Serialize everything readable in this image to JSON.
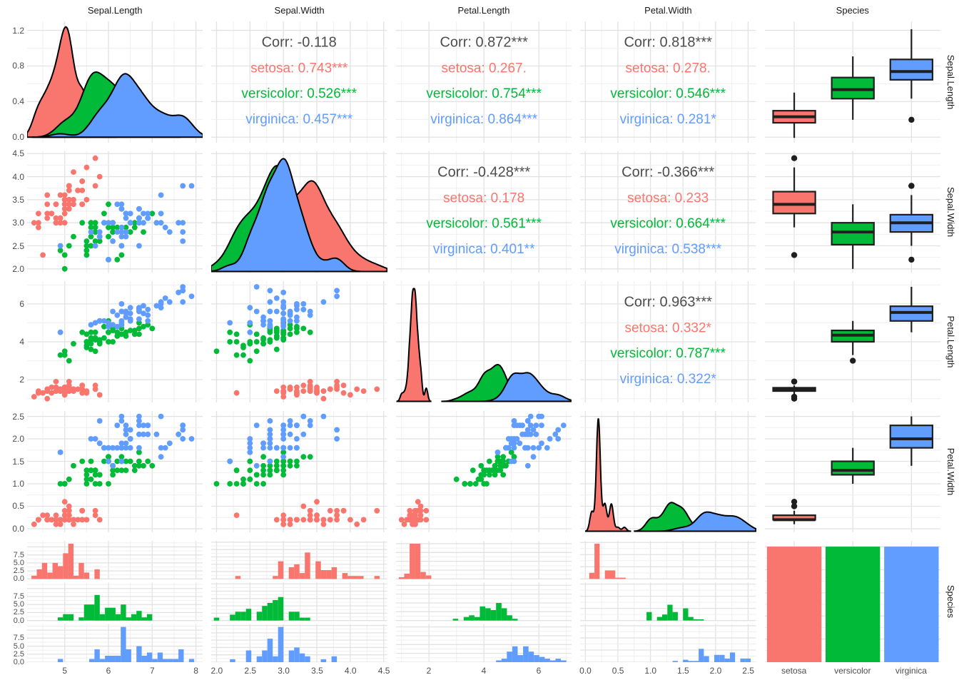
{
  "chart_data": {
    "type": "scatter",
    "subtype": "ggpairs-matrix",
    "title": "",
    "variables": [
      "Sepal.Length",
      "Sepal.Width",
      "Petal.Length",
      "Petal.Width",
      "Species"
    ],
    "species": [
      "setosa",
      "versicolor",
      "virginica"
    ],
    "colors": {
      "setosa": "#F8766D",
      "versicolor": "#00BA38",
      "virginica": "#619CFF",
      "corr_text": "#4D4D4D",
      "box_stroke": "#1F1F1F",
      "outlier": "#1F1F1F",
      "density_stroke": "#000000",
      "grid_major": "#E2E2E2",
      "grid_minor": "#EFEFEF",
      "tick_label": "#4D4D4D",
      "title_text": "#1A1A1A",
      "background": "#FFFFFF"
    },
    "axes": {
      "domains": {
        "Sepal.Length": [
          4.14,
          8.16
        ],
        "Sepal.Width": [
          1.92,
          4.55
        ],
        "Petal.Length": [
          0.8,
          7.2
        ],
        "Petal.Width": [
          -0.08,
          2.62
        ]
      },
      "x_ticks": {
        "Sepal.Length": {
          "values": [
            5,
            6,
            7,
            8
          ],
          "labels": [
            "5",
            "6",
            "7",
            "8"
          ]
        },
        "Sepal.Width": {
          "values": [
            2.0,
            2.5,
            3.0,
            3.5,
            4.0,
            4.5
          ],
          "labels": [
            "2.0",
            "2.5",
            "3.0",
            "3.5",
            "4.0",
            "4.5"
          ]
        },
        "Petal.Length": {
          "values": [
            2,
            4,
            6
          ],
          "labels": [
            "2",
            "4",
            "6"
          ]
        },
        "Petal.Width": {
          "values": [
            0.0,
            0.5,
            1.0,
            1.5,
            2.0,
            2.5
          ],
          "labels": [
            "0.0",
            "0.5",
            "1.0",
            "1.5",
            "2.0",
            "2.5"
          ]
        },
        "Species": {
          "labels": [
            "setosa",
            "versicolor",
            "virginica"
          ]
        }
      },
      "density_y_ticks": {
        "values": [
          0,
          0.4,
          0.8,
          1.2
        ],
        "labels": [
          "0.0",
          "0.4",
          "0.8",
          "1.2"
        ]
      },
      "count_y_ticks": {
        "values": [
          0,
          2.5,
          5,
          7.5
        ],
        "labels": [
          "0.0",
          "2.5",
          "5.0",
          "7.5"
        ]
      },
      "bar_count": 50
    },
    "correlations": [
      {
        "row": 1,
        "col": 2,
        "lines": [
          "Corr: -0.118",
          "setosa: 0.743***",
          "versicolor: 0.526***",
          "virginica: 0.457***"
        ]
      },
      {
        "row": 1,
        "col": 3,
        "lines": [
          "Corr: 0.872***",
          "setosa: 0.267.",
          "versicolor: 0.754***",
          "virginica: 0.864***"
        ]
      },
      {
        "row": 1,
        "col": 4,
        "lines": [
          "Corr: 0.818***",
          "setosa: 0.278.",
          "versicolor: 0.546***",
          "virginica: 0.281*"
        ]
      },
      {
        "row": 2,
        "col": 3,
        "lines": [
          "Corr: -0.428***",
          "setosa: 0.178",
          "versicolor: 0.561***",
          "virginica: 0.401**"
        ]
      },
      {
        "row": 2,
        "col": 4,
        "lines": [
          "Corr: -0.366***",
          "setosa: 0.233",
          "versicolor: 0.664***",
          "virginica: 0.538***"
        ]
      },
      {
        "row": 3,
        "col": 4,
        "lines": [
          "Corr: 0.963***",
          "setosa: 0.332*",
          "versicolor: 0.787***",
          "virginica: 0.322*"
        ]
      }
    ],
    "data_columns": [
      "Sepal.Length",
      "Sepal.Width",
      "Petal.Length",
      "Petal.Width"
    ],
    "data": {
      "setosa": [
        [
          5.1,
          3.5,
          1.4,
          0.2
        ],
        [
          4.9,
          3.0,
          1.4,
          0.2
        ],
        [
          4.7,
          3.2,
          1.3,
          0.2
        ],
        [
          4.6,
          3.1,
          1.5,
          0.2
        ],
        [
          5.0,
          3.6,
          1.4,
          0.2
        ],
        [
          5.4,
          3.9,
          1.7,
          0.4
        ],
        [
          4.6,
          3.4,
          1.4,
          0.3
        ],
        [
          5.0,
          3.4,
          1.5,
          0.2
        ],
        [
          4.4,
          2.9,
          1.4,
          0.2
        ],
        [
          4.9,
          3.1,
          1.5,
          0.1
        ],
        [
          5.4,
          3.7,
          1.5,
          0.2
        ],
        [
          4.8,
          3.4,
          1.6,
          0.2
        ],
        [
          4.8,
          3.0,
          1.4,
          0.1
        ],
        [
          4.3,
          3.0,
          1.1,
          0.1
        ],
        [
          5.8,
          4.0,
          1.2,
          0.2
        ],
        [
          5.7,
          4.4,
          1.5,
          0.4
        ],
        [
          5.4,
          3.9,
          1.3,
          0.4
        ],
        [
          5.1,
          3.5,
          1.4,
          0.3
        ],
        [
          5.7,
          3.8,
          1.7,
          0.3
        ],
        [
          5.1,
          3.8,
          1.5,
          0.3
        ],
        [
          5.4,
          3.4,
          1.7,
          0.2
        ],
        [
          5.1,
          3.7,
          1.5,
          0.4
        ],
        [
          4.6,
          3.6,
          1.0,
          0.2
        ],
        [
          5.1,
          3.3,
          1.7,
          0.5
        ],
        [
          4.8,
          3.4,
          1.9,
          0.2
        ],
        [
          5.0,
          3.0,
          1.6,
          0.2
        ],
        [
          5.0,
          3.4,
          1.6,
          0.4
        ],
        [
          5.2,
          3.5,
          1.5,
          0.2
        ],
        [
          5.2,
          3.4,
          1.4,
          0.2
        ],
        [
          4.7,
          3.2,
          1.6,
          0.2
        ],
        [
          4.8,
          3.1,
          1.6,
          0.2
        ],
        [
          5.4,
          3.4,
          1.5,
          0.4
        ],
        [
          5.2,
          4.1,
          1.5,
          0.1
        ],
        [
          5.5,
          4.2,
          1.4,
          0.2
        ],
        [
          4.9,
          3.1,
          1.5,
          0.2
        ],
        [
          5.0,
          3.2,
          1.2,
          0.2
        ],
        [
          5.5,
          3.5,
          1.3,
          0.2
        ],
        [
          4.9,
          3.6,
          1.4,
          0.1
        ],
        [
          4.4,
          3.0,
          1.3,
          0.2
        ],
        [
          5.1,
          3.4,
          1.5,
          0.2
        ],
        [
          5.0,
          3.5,
          1.3,
          0.3
        ],
        [
          4.5,
          2.3,
          1.3,
          0.3
        ],
        [
          4.4,
          3.2,
          1.3,
          0.2
        ],
        [
          5.0,
          3.5,
          1.6,
          0.6
        ],
        [
          5.1,
          3.8,
          1.9,
          0.4
        ],
        [
          4.8,
          3.0,
          1.4,
          0.3
        ],
        [
          5.1,
          3.8,
          1.6,
          0.2
        ],
        [
          4.6,
          3.2,
          1.4,
          0.2
        ],
        [
          5.3,
          3.7,
          1.5,
          0.2
        ],
        [
          5.0,
          3.3,
          1.4,
          0.2
        ]
      ],
      "versicolor": [
        [
          7.0,
          3.2,
          4.7,
          1.4
        ],
        [
          6.4,
          3.2,
          4.5,
          1.5
        ],
        [
          6.9,
          3.1,
          4.9,
          1.5
        ],
        [
          5.5,
          2.3,
          4.0,
          1.3
        ],
        [
          6.5,
          2.8,
          4.6,
          1.5
        ],
        [
          5.7,
          2.8,
          4.5,
          1.3
        ],
        [
          6.3,
          3.3,
          4.7,
          1.6
        ],
        [
          4.9,
          2.4,
          3.3,
          1.0
        ],
        [
          6.6,
          2.9,
          4.6,
          1.3
        ],
        [
          5.2,
          2.7,
          3.9,
          1.4
        ],
        [
          5.0,
          2.0,
          3.5,
          1.0
        ],
        [
          5.9,
          3.0,
          4.2,
          1.5
        ],
        [
          6.0,
          2.2,
          4.0,
          1.0
        ],
        [
          6.1,
          2.9,
          4.7,
          1.4
        ],
        [
          5.6,
          2.9,
          3.6,
          1.3
        ],
        [
          6.7,
          3.1,
          4.4,
          1.4
        ],
        [
          5.6,
          3.0,
          4.5,
          1.5
        ],
        [
          5.8,
          2.7,
          4.1,
          1.0
        ],
        [
          6.2,
          2.2,
          4.5,
          1.5
        ],
        [
          5.6,
          2.5,
          3.9,
          1.1
        ],
        [
          5.9,
          3.2,
          4.8,
          1.8
        ],
        [
          6.1,
          2.8,
          4.0,
          1.3
        ],
        [
          6.3,
          2.5,
          4.9,
          1.5
        ],
        [
          6.1,
          2.8,
          4.7,
          1.2
        ],
        [
          6.4,
          2.9,
          4.3,
          1.3
        ],
        [
          6.6,
          3.0,
          4.4,
          1.4
        ],
        [
          6.8,
          2.8,
          4.8,
          1.4
        ],
        [
          6.7,
          3.0,
          5.0,
          1.7
        ],
        [
          6.0,
          2.9,
          4.5,
          1.5
        ],
        [
          5.7,
          2.6,
          3.5,
          1.0
        ],
        [
          5.5,
          2.4,
          3.8,
          1.1
        ],
        [
          5.5,
          2.4,
          3.7,
          1.0
        ],
        [
          5.8,
          2.7,
          3.9,
          1.2
        ],
        [
          6.0,
          2.7,
          5.1,
          1.6
        ],
        [
          5.4,
          3.0,
          4.5,
          1.5
        ],
        [
          6.0,
          3.4,
          4.5,
          1.6
        ],
        [
          6.7,
          3.1,
          4.7,
          1.5
        ],
        [
          6.3,
          2.3,
          4.4,
          1.3
        ],
        [
          5.6,
          3.0,
          4.1,
          1.3
        ],
        [
          5.5,
          2.5,
          4.0,
          1.3
        ],
        [
          5.5,
          2.6,
          4.4,
          1.2
        ],
        [
          6.1,
          3.0,
          4.6,
          1.4
        ],
        [
          5.8,
          2.6,
          4.0,
          1.2
        ],
        [
          5.0,
          2.3,
          3.3,
          1.0
        ],
        [
          5.6,
          2.7,
          4.2,
          1.3
        ],
        [
          5.7,
          3.0,
          4.2,
          1.2
        ],
        [
          5.7,
          2.9,
          4.2,
          1.3
        ],
        [
          6.2,
          2.9,
          4.3,
          1.3
        ],
        [
          5.1,
          2.5,
          3.0,
          1.1
        ],
        [
          5.7,
          2.8,
          4.1,
          1.3
        ]
      ],
      "virginica": [
        [
          6.3,
          3.3,
          6.0,
          2.5
        ],
        [
          5.8,
          2.7,
          5.1,
          1.9
        ],
        [
          7.1,
          3.0,
          5.9,
          2.1
        ],
        [
          6.3,
          2.9,
          5.6,
          1.8
        ],
        [
          6.5,
          3.0,
          5.8,
          2.2
        ],
        [
          7.6,
          3.0,
          6.6,
          2.1
        ],
        [
          4.9,
          2.5,
          4.5,
          1.7
        ],
        [
          7.3,
          2.9,
          6.3,
          1.8
        ],
        [
          6.7,
          2.5,
          5.8,
          1.8
        ],
        [
          7.2,
          3.6,
          6.1,
          2.5
        ],
        [
          6.5,
          3.2,
          5.1,
          2.0
        ],
        [
          6.4,
          2.7,
          5.3,
          1.9
        ],
        [
          6.8,
          3.0,
          5.5,
          2.1
        ],
        [
          5.7,
          2.5,
          5.0,
          2.0
        ],
        [
          5.8,
          2.8,
          5.1,
          2.4
        ],
        [
          6.4,
          3.2,
          5.3,
          2.3
        ],
        [
          6.5,
          3.0,
          5.5,
          1.8
        ],
        [
          7.7,
          3.8,
          6.7,
          2.2
        ],
        [
          7.7,
          2.6,
          6.9,
          2.3
        ],
        [
          6.0,
          2.2,
          5.0,
          1.5
        ],
        [
          6.9,
          3.2,
          5.7,
          2.3
        ],
        [
          5.6,
          2.8,
          4.9,
          2.0
        ],
        [
          7.7,
          2.8,
          6.7,
          2.0
        ],
        [
          6.3,
          2.7,
          4.9,
          1.8
        ],
        [
          6.7,
          3.3,
          5.7,
          2.1
        ],
        [
          7.2,
          3.2,
          6.0,
          1.8
        ],
        [
          6.2,
          2.8,
          4.8,
          1.8
        ],
        [
          6.1,
          3.0,
          4.9,
          1.8
        ],
        [
          6.4,
          2.8,
          5.6,
          2.1
        ],
        [
          7.2,
          3.0,
          5.8,
          1.6
        ],
        [
          7.4,
          2.8,
          6.1,
          1.9
        ],
        [
          7.9,
          3.8,
          6.4,
          2.0
        ],
        [
          6.4,
          2.8,
          5.6,
          2.2
        ],
        [
          6.3,
          2.8,
          5.1,
          1.5
        ],
        [
          6.1,
          2.6,
          5.6,
          1.4
        ],
        [
          7.7,
          3.0,
          6.1,
          2.3
        ],
        [
          6.3,
          3.4,
          5.6,
          2.4
        ],
        [
          6.4,
          3.1,
          5.5,
          1.8
        ],
        [
          6.0,
          3.0,
          4.8,
          1.8
        ],
        [
          6.9,
          3.1,
          5.4,
          2.1
        ],
        [
          6.7,
          3.1,
          5.6,
          2.4
        ],
        [
          6.9,
          3.1,
          5.1,
          2.3
        ],
        [
          5.8,
          2.7,
          5.1,
          1.9
        ],
        [
          6.8,
          3.2,
          5.9,
          2.3
        ],
        [
          6.7,
          3.3,
          5.7,
          2.5
        ],
        [
          6.7,
          3.0,
          5.2,
          2.3
        ],
        [
          6.3,
          2.5,
          5.0,
          1.9
        ],
        [
          6.5,
          3.0,
          5.2,
          2.0
        ],
        [
          6.2,
          3.4,
          5.4,
          2.3
        ],
        [
          5.9,
          3.0,
          5.1,
          1.8
        ]
      ]
    }
  }
}
